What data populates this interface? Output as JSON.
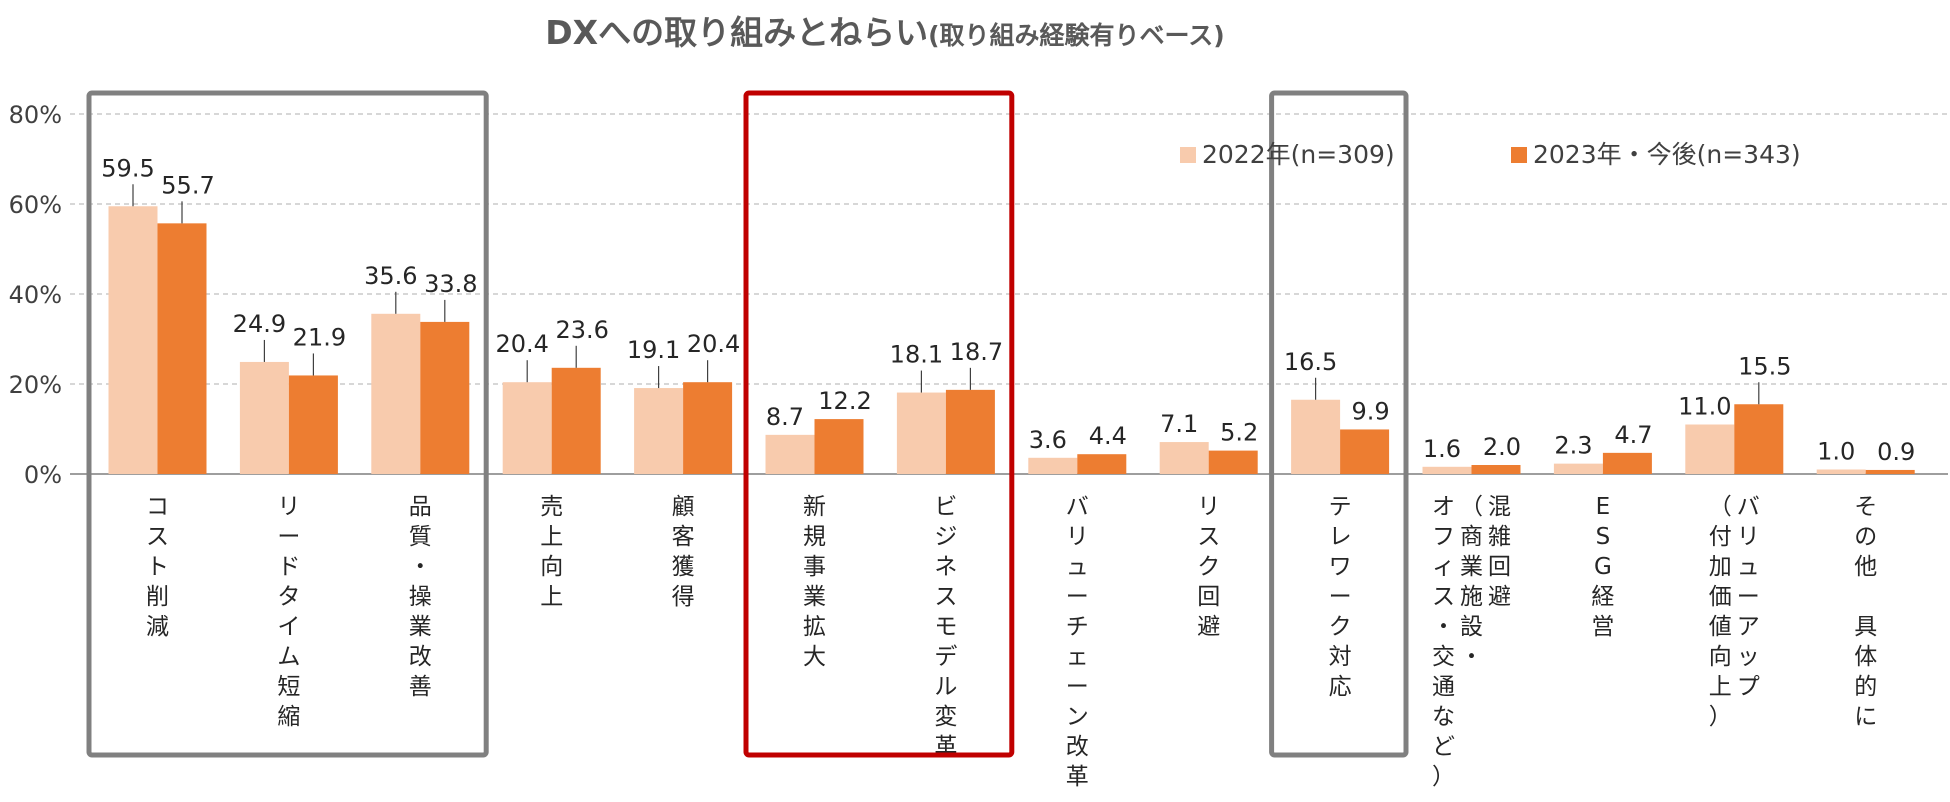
{
  "chart_data": {
    "type": "bar",
    "title": "DXへの取り組みとねらい",
    "subtitle": "(取り組み経験有りベース)",
    "y_ticks": [
      "80%",
      "60%",
      "40%",
      "20%",
      "0%"
    ],
    "ylim": [
      0,
      80
    ],
    "grid": true,
    "legend_position": "top-right",
    "categories": [
      "コスト削減",
      "リードタイム短縮",
      "品質・操業改善",
      "売上向上",
      "顧客獲得",
      "新規事業拡大",
      "ビジネスモデル変革",
      "バリューチェーン改革",
      "リスク回避",
      "テレワーク対応",
      "混雑回避（商業施設・オフィス・交通など）",
      "ESG経営",
      "バリューアップ（付加価値向上）",
      "その他　具体的に"
    ],
    "category_columns": [
      [
        "コスト削減"
      ],
      [
        "リードタイム短縮"
      ],
      [
        "品質・操業改善"
      ],
      [
        "売上向上"
      ],
      [
        "顧客獲得"
      ],
      [
        "新規事業拡大"
      ],
      [
        "ビジネスモデル変革"
      ],
      [
        "バリューチェーン改革"
      ],
      [
        "リスク回避"
      ],
      [
        "テレワーク対応"
      ],
      [
        "混雑回避",
        "（商業施設・",
        "オフィス・交通など）"
      ],
      [
        "ESG経営"
      ],
      [
        "バリューアップ",
        "（付加価値向上）"
      ],
      [
        "その他　具体的に"
      ]
    ],
    "series": [
      {
        "name": "2022年(n=309)",
        "color": "#F8CBAD",
        "values": [
          59.5,
          24.9,
          35.6,
          20.4,
          19.1,
          8.7,
          18.1,
          3.6,
          7.1,
          16.5,
          1.6,
          2.3,
          11.0,
          1.0
        ],
        "labels": [
          "59.5",
          "24.9",
          "35.6",
          "20.4",
          "19.1",
          "8.7",
          "18.1",
          "3.6",
          "7.1",
          "16.5",
          "1.6",
          "2.3",
          "11.0",
          "1.0"
        ]
      },
      {
        "name": "2023年・今後(n=343)",
        "color": "#ED7D31",
        "values": [
          55.7,
          21.9,
          33.8,
          23.6,
          20.4,
          12.2,
          18.7,
          4.4,
          5.2,
          9.9,
          2.0,
          4.7,
          15.5,
          0.9
        ],
        "labels": [
          "55.7",
          "21.9",
          "33.8",
          "23.6",
          "20.4",
          "12.2",
          "18.7",
          "4.4",
          "5.2",
          "9.9",
          "2.0",
          "4.7",
          "15.5",
          "0.9"
        ]
      }
    ],
    "highlight_groups": [
      {
        "categories": [
          0,
          2
        ],
        "color": "#808080"
      },
      {
        "categories": [
          5,
          6
        ],
        "color": "#C00000"
      },
      {
        "categories": [
          9,
          9
        ],
        "color": "#808080"
      }
    ]
  }
}
